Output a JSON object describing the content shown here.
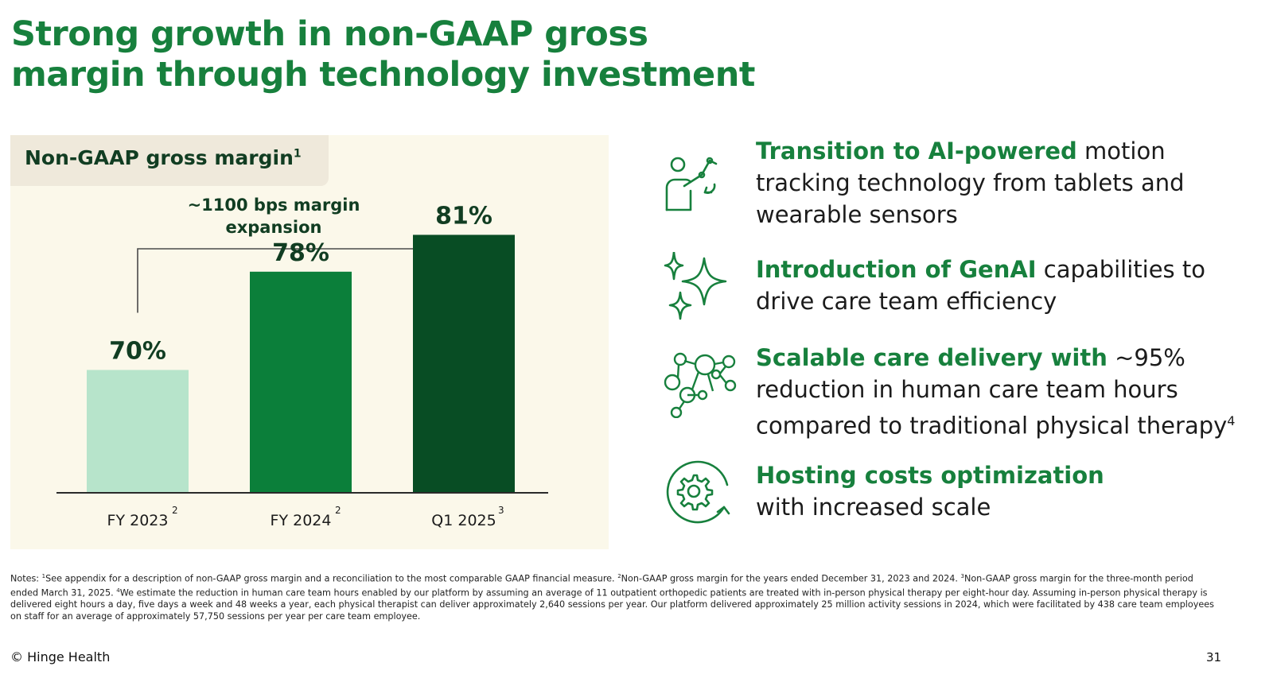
{
  "title": {
    "line1": "Strong growth in non-GAAP gross",
    "line2": "margin through technology investment"
  },
  "panel": {
    "label": "Non-GAAP gross margin",
    "label_sup": "1"
  },
  "chart_data": {
    "type": "bar",
    "title": "Non-GAAP gross margin",
    "categories": [
      "FY 2023",
      "FY 2024",
      "Q1 2025"
    ],
    "category_sups": [
      "2",
      "2",
      "3"
    ],
    "values": [
      70,
      78,
      81
    ],
    "data_labels": [
      "70%",
      "78%",
      "81%"
    ],
    "ylim": [
      60,
      82
    ],
    "annotation": {
      "line1": "~1100 bps margin",
      "line2": "expansion"
    },
    "colors": [
      "#b7e4cb",
      "#0b7f3a",
      "#084d24"
    ],
    "grid": false,
    "legend": "none"
  },
  "right": {
    "items": [
      {
        "icon": "person-motion-tracking-icon",
        "bold": "Transition to AI-powered",
        "rest": " motion tracking technology from tablets and wearable sensors",
        "sup": ""
      },
      {
        "icon": "sparkles-icon",
        "bold": "Introduction of GenAI",
        "rest": " capabilities to drive care team efficiency",
        "sup": ""
      },
      {
        "icon": "network-people-icon",
        "bold": "Scalable care delivery with",
        "rest": " ~95% reduction in human care team hours compared to traditional physical therapy",
        "sup": "4"
      },
      {
        "icon": "gear-cycle-icon",
        "bold": "Hosting costs optimization",
        "rest": " with increased scale",
        "sup": ""
      }
    ]
  },
  "notes": {
    "prefix": "Notes: ",
    "n1_sup": "1",
    "n1": "See appendix for a description of non-GAAP gross margin and a reconciliation to the most comparable GAAP financial measure. ",
    "n2_sup": "2",
    "n2": "Non-GAAP gross margin for the years ended December 31, 2023 and 2024. ",
    "n3_sup": "3",
    "n3": "Non-GAAP gross margin for the three-month period ended March 31, 2025. ",
    "n4_sup": "4",
    "n4": "We estimate the reduction in human care team hours enabled by our platform by assuming an average of 11 outpatient orthopedic patients are treated with in-person physical therapy per eight-hour day. Assuming in-person physical therapy is delivered eight hours a day, five days a week and 48 weeks a year, each physical therapist can deliver approximately 2,640 sessions per year. Our platform delivered approximately 25 million activity sessions in 2024, which were facilitated by 438 care team employees on staff for an average of approximately 57,750 sessions per year per care team employee."
  },
  "footer": {
    "left": "© Hinge Health",
    "page": "31"
  }
}
